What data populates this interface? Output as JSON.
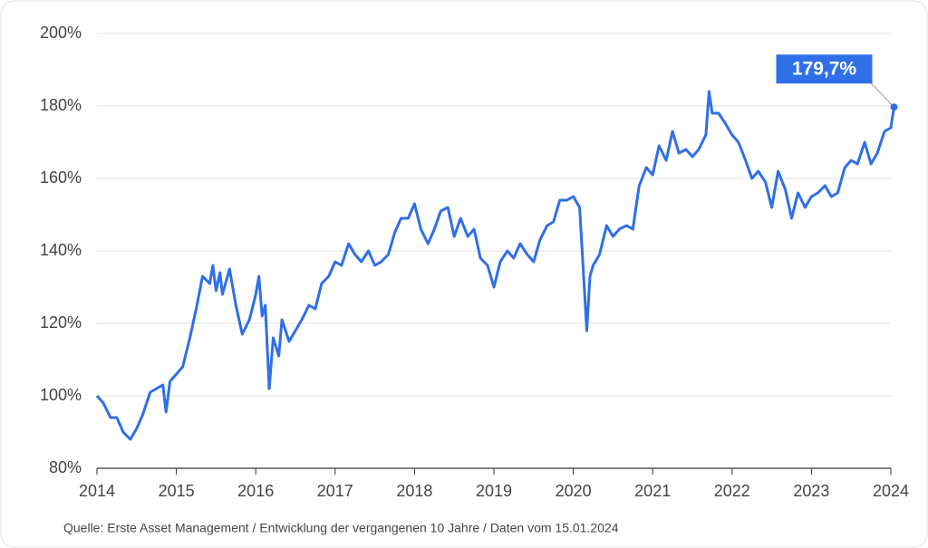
{
  "chart_data": {
    "type": "line",
    "source": "Quelle: Erste Asset Management / Entwicklung der vergangenen 10 Jahre / Daten vom 15.01.2024",
    "x": [
      2014.0,
      2014.08,
      2014.17,
      2014.25,
      2014.33,
      2014.42,
      2014.5,
      2014.58,
      2014.67,
      2014.75,
      2014.83,
      2014.87,
      2014.92,
      2015.0,
      2015.08,
      2015.17,
      2015.25,
      2015.33,
      2015.42,
      2015.46,
      2015.5,
      2015.55,
      2015.58,
      2015.67,
      2015.75,
      2015.83,
      2015.92,
      2016.0,
      2016.04,
      2016.08,
      2016.12,
      2016.17,
      2016.22,
      2016.29,
      2016.33,
      2016.42,
      2016.5,
      2016.58,
      2016.67,
      2016.75,
      2016.83,
      2016.92,
      2017.0,
      2017.08,
      2017.17,
      2017.25,
      2017.33,
      2017.42,
      2017.5,
      2017.58,
      2017.67,
      2017.75,
      2017.83,
      2017.92,
      2018.0,
      2018.08,
      2018.17,
      2018.25,
      2018.33,
      2018.42,
      2018.5,
      2018.58,
      2018.67,
      2018.75,
      2018.83,
      2018.92,
      2019.0,
      2019.08,
      2019.17,
      2019.25,
      2019.33,
      2019.42,
      2019.5,
      2019.58,
      2019.67,
      2019.75,
      2019.83,
      2019.92,
      2020.0,
      2020.08,
      2020.17,
      2020.21,
      2020.25,
      2020.33,
      2020.42,
      2020.5,
      2020.58,
      2020.67,
      2020.75,
      2020.83,
      2020.92,
      2021.0,
      2021.08,
      2021.17,
      2021.25,
      2021.33,
      2021.42,
      2021.5,
      2021.58,
      2021.67,
      2021.71,
      2021.75,
      2021.83,
      2021.92,
      2022.0,
      2022.08,
      2022.17,
      2022.25,
      2022.33,
      2022.42,
      2022.5,
      2022.58,
      2022.67,
      2022.75,
      2022.83,
      2022.92,
      2023.0,
      2023.08,
      2023.17,
      2023.25,
      2023.33,
      2023.42,
      2023.5,
      2023.58,
      2023.67,
      2023.75,
      2023.83,
      2023.92,
      2024.0,
      2024.04
    ],
    "series": [
      {
        "color": "#2f6fe8",
        "values": [
          100,
          98,
          94,
          94,
          90,
          88,
          91,
          95,
          101,
          102,
          103,
          95.5,
          104,
          106,
          108,
          116,
          124,
          133,
          131,
          136,
          129,
          134,
          128,
          135,
          125,
          117,
          121,
          128,
          133,
          122,
          125,
          102,
          116,
          111,
          121,
          115,
          118,
          121,
          125,
          124,
          131,
          133,
          137,
          136,
          142,
          139,
          137,
          140,
          136,
          137,
          139,
          145,
          149,
          149,
          153,
          146,
          142,
          146,
          151,
          152,
          144,
          149,
          144,
          146,
          138,
          136,
          130,
          137,
          140,
          138,
          142,
          139,
          137,
          143,
          147,
          148,
          154,
          154,
          155,
          152,
          118,
          133,
          136,
          139,
          147,
          144,
          146,
          147,
          146,
          158,
          163,
          161,
          169,
          165,
          173,
          167,
          168,
          166,
          168,
          172,
          184,
          178,
          178,
          175,
          172,
          170,
          165,
          160,
          162,
          159,
          152,
          162,
          157,
          149,
          156,
          152,
          155,
          156,
          158,
          155,
          156,
          163,
          165,
          164,
          170,
          164,
          167,
          173,
          174,
          179.7
        ],
        "value_labels": [
          null,
          null,
          null,
          null,
          null,
          null,
          null,
          null,
          null,
          null,
          null,
          null,
          null,
          null,
          null,
          null,
          null,
          null,
          null,
          null,
          null,
          null,
          null,
          null,
          null,
          null,
          null,
          null,
          null,
          null,
          null,
          null,
          null,
          null,
          null,
          null,
          null,
          null,
          null,
          null,
          null,
          null,
          null,
          null,
          null,
          null,
          null,
          null,
          null,
          null,
          null,
          null,
          null,
          null,
          null,
          null,
          null,
          null,
          null,
          null,
          null,
          null,
          null,
          null,
          null,
          null,
          null,
          null,
          null,
          null,
          null,
          null,
          null,
          null,
          null,
          null,
          null,
          null,
          null,
          null,
          null,
          null,
          null,
          null,
          null,
          null,
          null,
          null,
          null,
          null,
          null,
          null,
          null,
          null,
          null,
          null,
          null,
          null,
          null,
          null,
          null,
          null,
          null,
          null,
          null,
          null,
          null,
          null,
          null,
          null,
          null,
          null,
          null,
          null,
          null,
          null,
          null,
          null,
          null,
          null,
          null,
          null,
          null,
          null,
          null,
          null,
          null,
          null,
          null,
          "179,7%"
        ]
      }
    ],
    "xlim": [
      2014,
      2024
    ],
    "xticks": [
      2014,
      2015,
      2016,
      2017,
      2018,
      2019,
      2020,
      2021,
      2022,
      2023,
      2024
    ],
    "ylim": [
      80,
      200
    ],
    "yticks": [
      {
        "value": 80,
        "label": "80%"
      },
      {
        "value": 100,
        "label": "100%"
      },
      {
        "value": 120,
        "label": "120%"
      },
      {
        "value": 140,
        "label": "140%"
      },
      {
        "value": 160,
        "label": "160%"
      },
      {
        "value": 180,
        "label": "180%"
      },
      {
        "value": 200,
        "label": "200%"
      }
    ],
    "grid": true
  }
}
